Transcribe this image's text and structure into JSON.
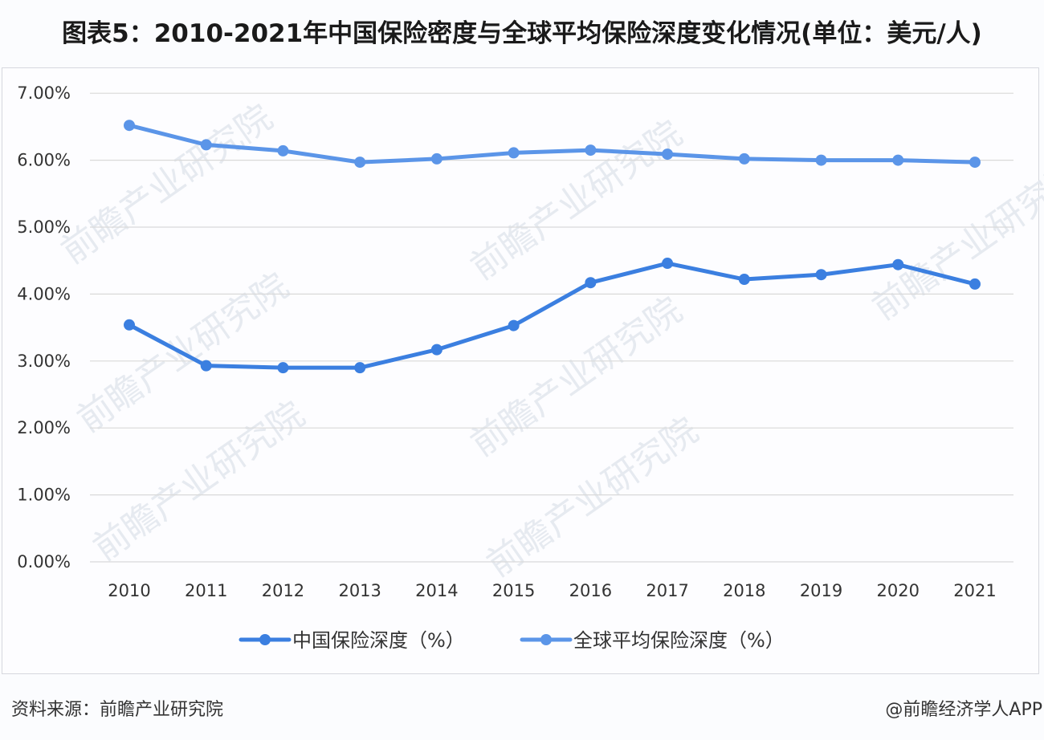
{
  "title": "图表5：2010-2021年中国保险密度与全球平均保险深度变化情况(单位：美元/人)",
  "footer": {
    "source": "资料来源：前瞻产业研究院",
    "credit": "@前瞻经济学人APP"
  },
  "watermark": "前瞻产业研究院",
  "colors": {
    "china": "#3b7fe0",
    "global": "#5b95e8",
    "grid": "#d9d9d9"
  },
  "chart_data": {
    "type": "line",
    "title": "图表5：2010-2021年中国保险密度与全球平均保险深度变化情况(单位：美元/人)",
    "xlabel": "",
    "ylabel": "",
    "x": [
      "2010",
      "2011",
      "2012",
      "2013",
      "2014",
      "2015",
      "2016",
      "2017",
      "2018",
      "2019",
      "2020",
      "2021"
    ],
    "yticks": [
      "0.00%",
      "1.00%",
      "2.00%",
      "3.00%",
      "4.00%",
      "5.00%",
      "6.00%",
      "7.00%"
    ],
    "ylim": [
      0,
      7
    ],
    "grid": true,
    "legend_position": "bottom",
    "series": [
      {
        "name": "中国保险深度（%）",
        "values": [
          3.54,
          2.93,
          2.9,
          2.9,
          3.17,
          3.53,
          4.17,
          4.46,
          4.22,
          4.29,
          4.44,
          4.15
        ]
      },
      {
        "name": "全球平均保险深度（%）",
        "values": [
          6.52,
          6.23,
          6.14,
          5.97,
          6.02,
          6.11,
          6.15,
          6.09,
          6.02,
          6.0,
          6.0,
          5.97
        ]
      }
    ]
  }
}
